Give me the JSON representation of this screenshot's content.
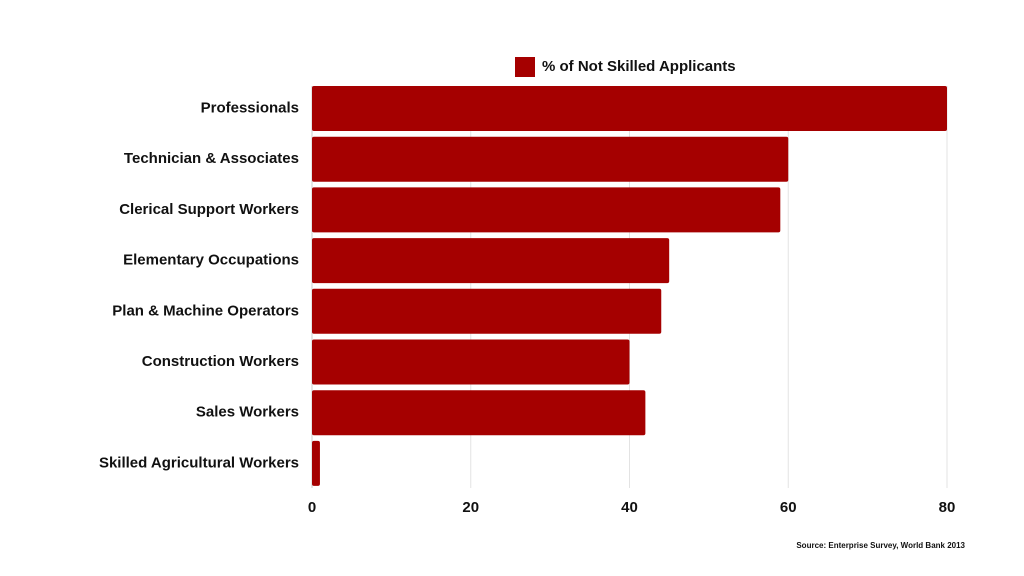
{
  "chart_data": {
    "type": "bar",
    "orientation": "horizontal",
    "categories": [
      "Professionals",
      "Technician & Associates",
      "Clerical Support Workers",
      "Elementary Occupations",
      "Plan & Machine Operators",
      "Construction Workers",
      "Sales Workers",
      "Skilled Agricultural Workers"
    ],
    "series": [
      {
        "name": "% of Not Skilled Applicants",
        "values": [
          80,
          60,
          59,
          45,
          44,
          40,
          42,
          1
        ],
        "color": "#a50000"
      }
    ],
    "xlim": [
      0,
      80
    ],
    "xticks": [
      "0",
      "20",
      "40",
      "60",
      "80"
    ],
    "grid": true,
    "legend_position": "top-center"
  },
  "source_note": "Source: Enterprise Survey, World Bank 2013",
  "colors": {
    "bar": "#a50000",
    "grid": "#e3e3e3",
    "text": "#111111"
  }
}
